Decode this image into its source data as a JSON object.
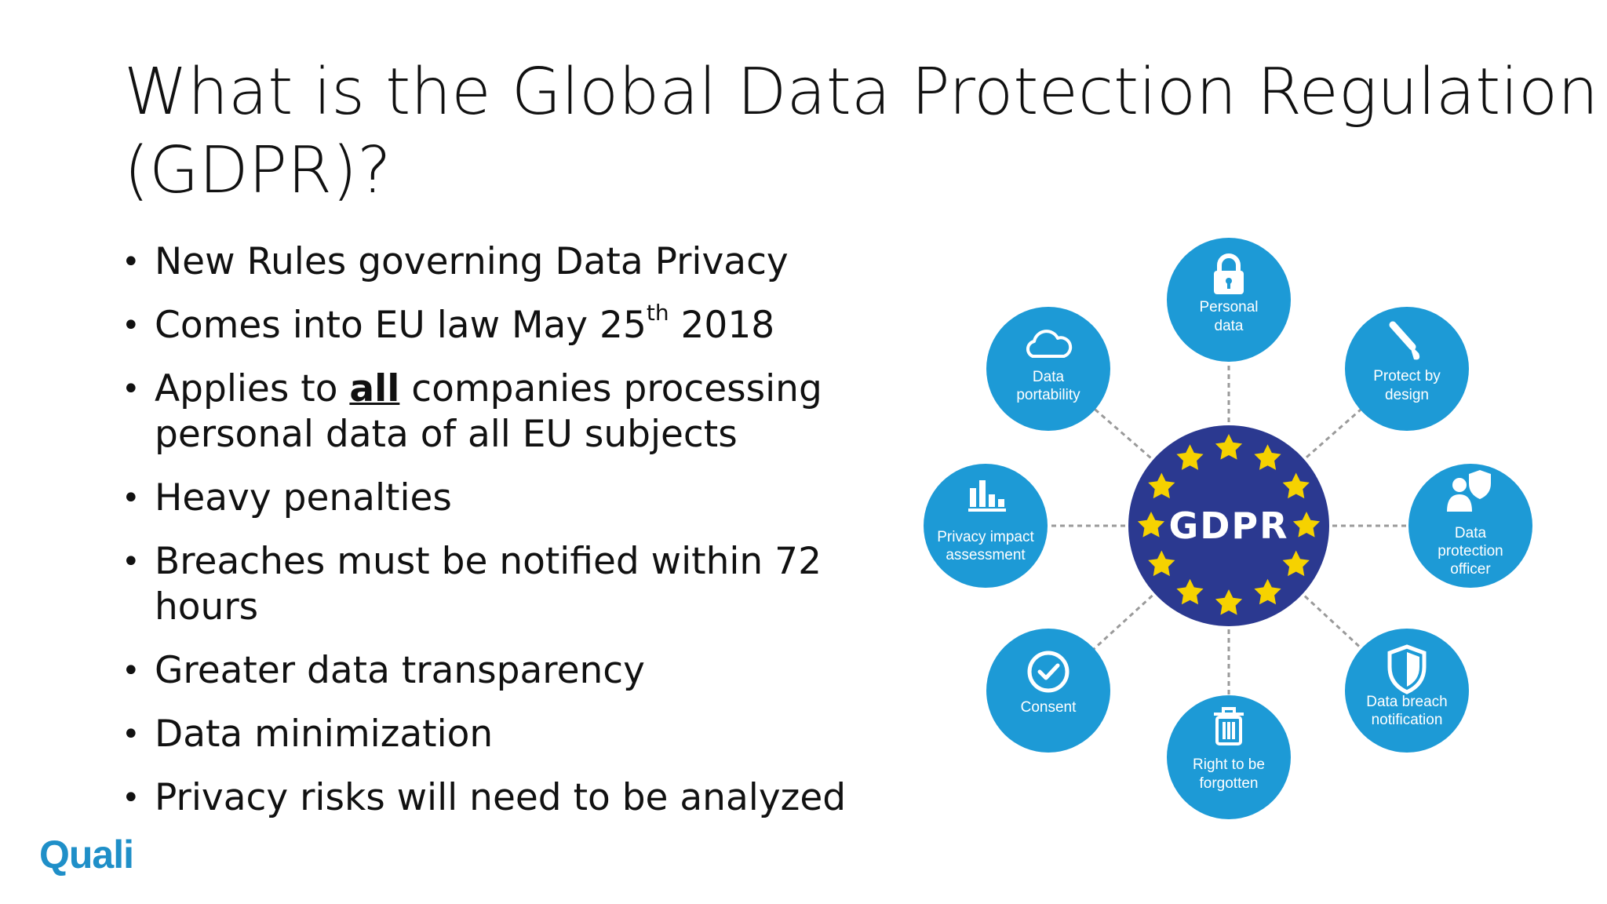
{
  "title": {
    "line1": "What is the Global Data Protection Regulation",
    "line2": "(GDPR)?"
  },
  "bullets": {
    "b1": "New Rules governing Data Privacy",
    "b2_pre": "Comes into EU law May 25",
    "b2_sup": "th",
    "b2_post": " 2018",
    "b3_pre": "Applies to ",
    "b3_emph": "all",
    "b3_post": " companies processing",
    "b3_line2": "personal data of all EU subjects",
    "b4": "Heavy penalties",
    "b5": "Breaches must be notified within 72 hours",
    "b6": "Greater data transparency",
    "b7": "Data minimization",
    "b8": "Privacy risks will need to be analyzed"
  },
  "diagram": {
    "center": "GDPR",
    "center_color": "#2b3990",
    "node_color": "#1d9ad6",
    "star_color": "#f6d200",
    "nodes": {
      "personal_data": {
        "l1": "Personal",
        "l2": "data",
        "icon": "lock-icon"
      },
      "protect_by_design": {
        "l1": "Protect by",
        "l2": "design",
        "icon": "brush-icon"
      },
      "dpo": {
        "l1": "Data",
        "l2": "protection",
        "l3": "officer",
        "icon": "officer-shield-icon"
      },
      "breach": {
        "l1": "Data breach",
        "l2": "notification",
        "icon": "shield-icon"
      },
      "forgotten": {
        "l1": "Right to be",
        "l2": "forgotten",
        "icon": "trash-icon"
      },
      "consent": {
        "l1": "Consent",
        "icon": "check-circle-icon"
      },
      "pia": {
        "l1": "Privacy impact",
        "l2": "assessment",
        "icon": "bar-chart-icon"
      },
      "portability": {
        "l1": "Data",
        "l2": "portability",
        "icon": "cloud-icon"
      }
    }
  },
  "logo": "Quali"
}
